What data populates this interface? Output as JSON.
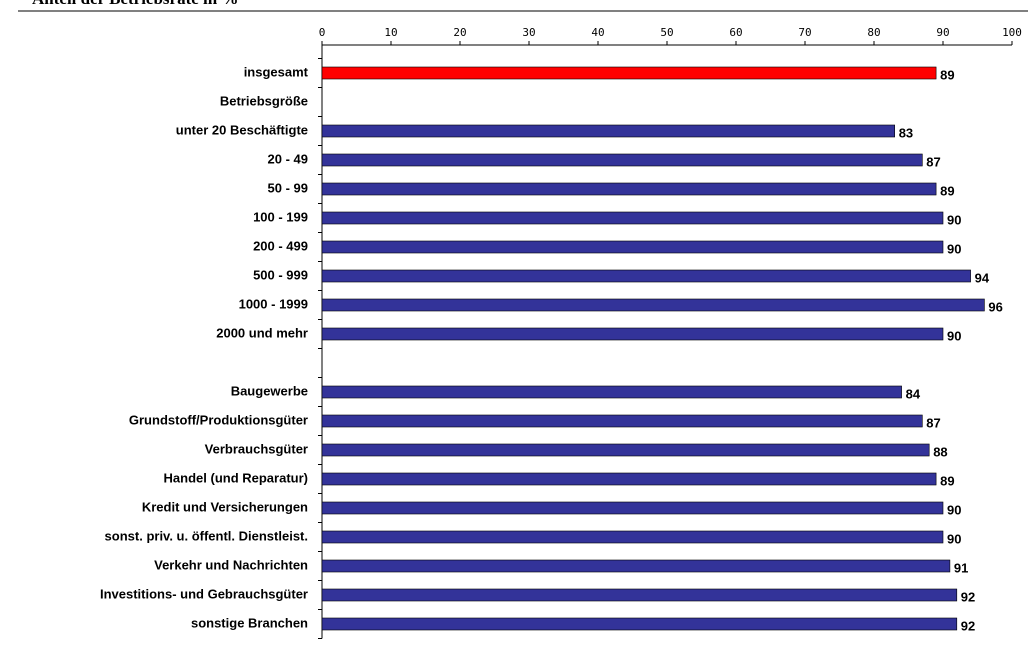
{
  "chart_data": {
    "type": "hbar",
    "title": "Anteil der Betriebsräte in %",
    "categories": [
      "insgesamt",
      "Betriebsgröße",
      "unter 20 Beschäftigte",
      "20 - 49",
      "50 - 99",
      "100 - 199",
      "200 - 499",
      "500 - 999",
      "1000 - 1999",
      "2000 und mehr",
      null,
      "Baugewerbe",
      "Grundstoff/Produktionsgüter",
      "Verbrauchsgüter",
      "Handel (und Reparatur)",
      "Kredit und Versicherungen",
      "sonst. priv. u. öffentl. Dienstleist.",
      "Verkehr und Nachrichten",
      "Investitions- und Gebrauchsgüter",
      "sonstige Branchen"
    ],
    "values": [
      89,
      null,
      83,
      87,
      89,
      90,
      90,
      94,
      96,
      90,
      null,
      84,
      87,
      88,
      89,
      90,
      90,
      91,
      92,
      92
    ],
    "colors": [
      "#ff0000",
      null,
      "#333399",
      "#333399",
      "#333399",
      "#333399",
      "#333399",
      "#333399",
      "#333399",
      "#333399",
      null,
      "#333399",
      "#333399",
      "#333399",
      "#333399",
      "#333399",
      "#333399",
      "#333399",
      "#333399",
      "#333399"
    ],
    "xlim": [
      0,
      100
    ],
    "xticks": [
      0,
      10,
      20,
      30,
      40,
      50,
      60,
      70,
      80,
      90,
      100
    ]
  }
}
